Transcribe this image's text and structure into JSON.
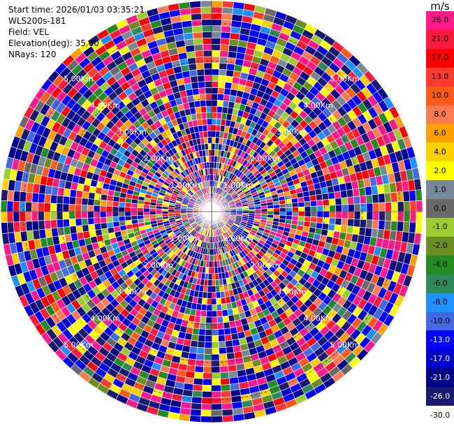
{
  "info": {
    "start_time": "Start time: 2026/01/03 03:35:21",
    "site": "WLS200s-181",
    "field": "Field: VEL",
    "elevation": "Elevation(deg): 35.00",
    "nrays": "NRays: 120"
  },
  "colorbar": {
    "unit": "m/s",
    "levels": [
      {
        "label": "26.0",
        "color": "#ff1a8c"
      },
      {
        "label": "21.0",
        "color": "#ff1a3c"
      },
      {
        "label": "17.0",
        "color": "#ff0000"
      },
      {
        "label": "13.0",
        "color": "#ff3b2f"
      },
      {
        "label": "10.0",
        "color": "#ff5a1a"
      },
      {
        "label": "8.0",
        "color": "#ff7a50"
      },
      {
        "label": "6.0",
        "color": "#ffa000"
      },
      {
        "label": "4.0",
        "color": "#ffd000"
      },
      {
        "label": "2.0",
        "color": "#ffff00"
      },
      {
        "label": "1.0",
        "color": "#778899"
      },
      {
        "label": "0.0",
        "color": "#696969"
      },
      {
        "label": "-1.0",
        "color": "#9acd32"
      },
      {
        "label": "-2.0",
        "color": "#6b8e23"
      },
      {
        "label": "-4.0",
        "color": "#228b22"
      },
      {
        "label": "-6.0",
        "color": "#2e8b57"
      },
      {
        "label": "-8.0",
        "color": "#1e90ff"
      },
      {
        "label": "-10.0",
        "color": "#4169e1"
      },
      {
        "label": "-13.0",
        "color": "#0000ff"
      },
      {
        "label": "-17.0",
        "color": "#0000cd"
      },
      {
        "label": "-21.0",
        "color": "#00008b"
      },
      {
        "label": "-26.0",
        "color": "#191970"
      },
      {
        "label": "-30.0",
        "color": "#ffffff"
      }
    ]
  },
  "chart_data": {
    "type": "heatmap",
    "projection": "polar",
    "field": "VEL",
    "unit": "m/s",
    "nrays": 120,
    "range_rings_km": [
      "1.00Km",
      "2.00Km",
      "3.00Km",
      "4.00Km",
      "5.00Km"
    ],
    "range_ring_values_km": [
      1,
      2,
      3,
      4,
      5
    ],
    "max_range_km": 5.6,
    "color_levels": [
      -30,
      -26,
      -21,
      -17,
      -13,
      -10,
      -8,
      -6,
      -4,
      -2,
      -1,
      0,
      1,
      2,
      4,
      6,
      8,
      10,
      13,
      17,
      21,
      26
    ],
    "gates_per_ray": 34,
    "data_note": "velocity values appear as noisy folded data across all gates"
  }
}
